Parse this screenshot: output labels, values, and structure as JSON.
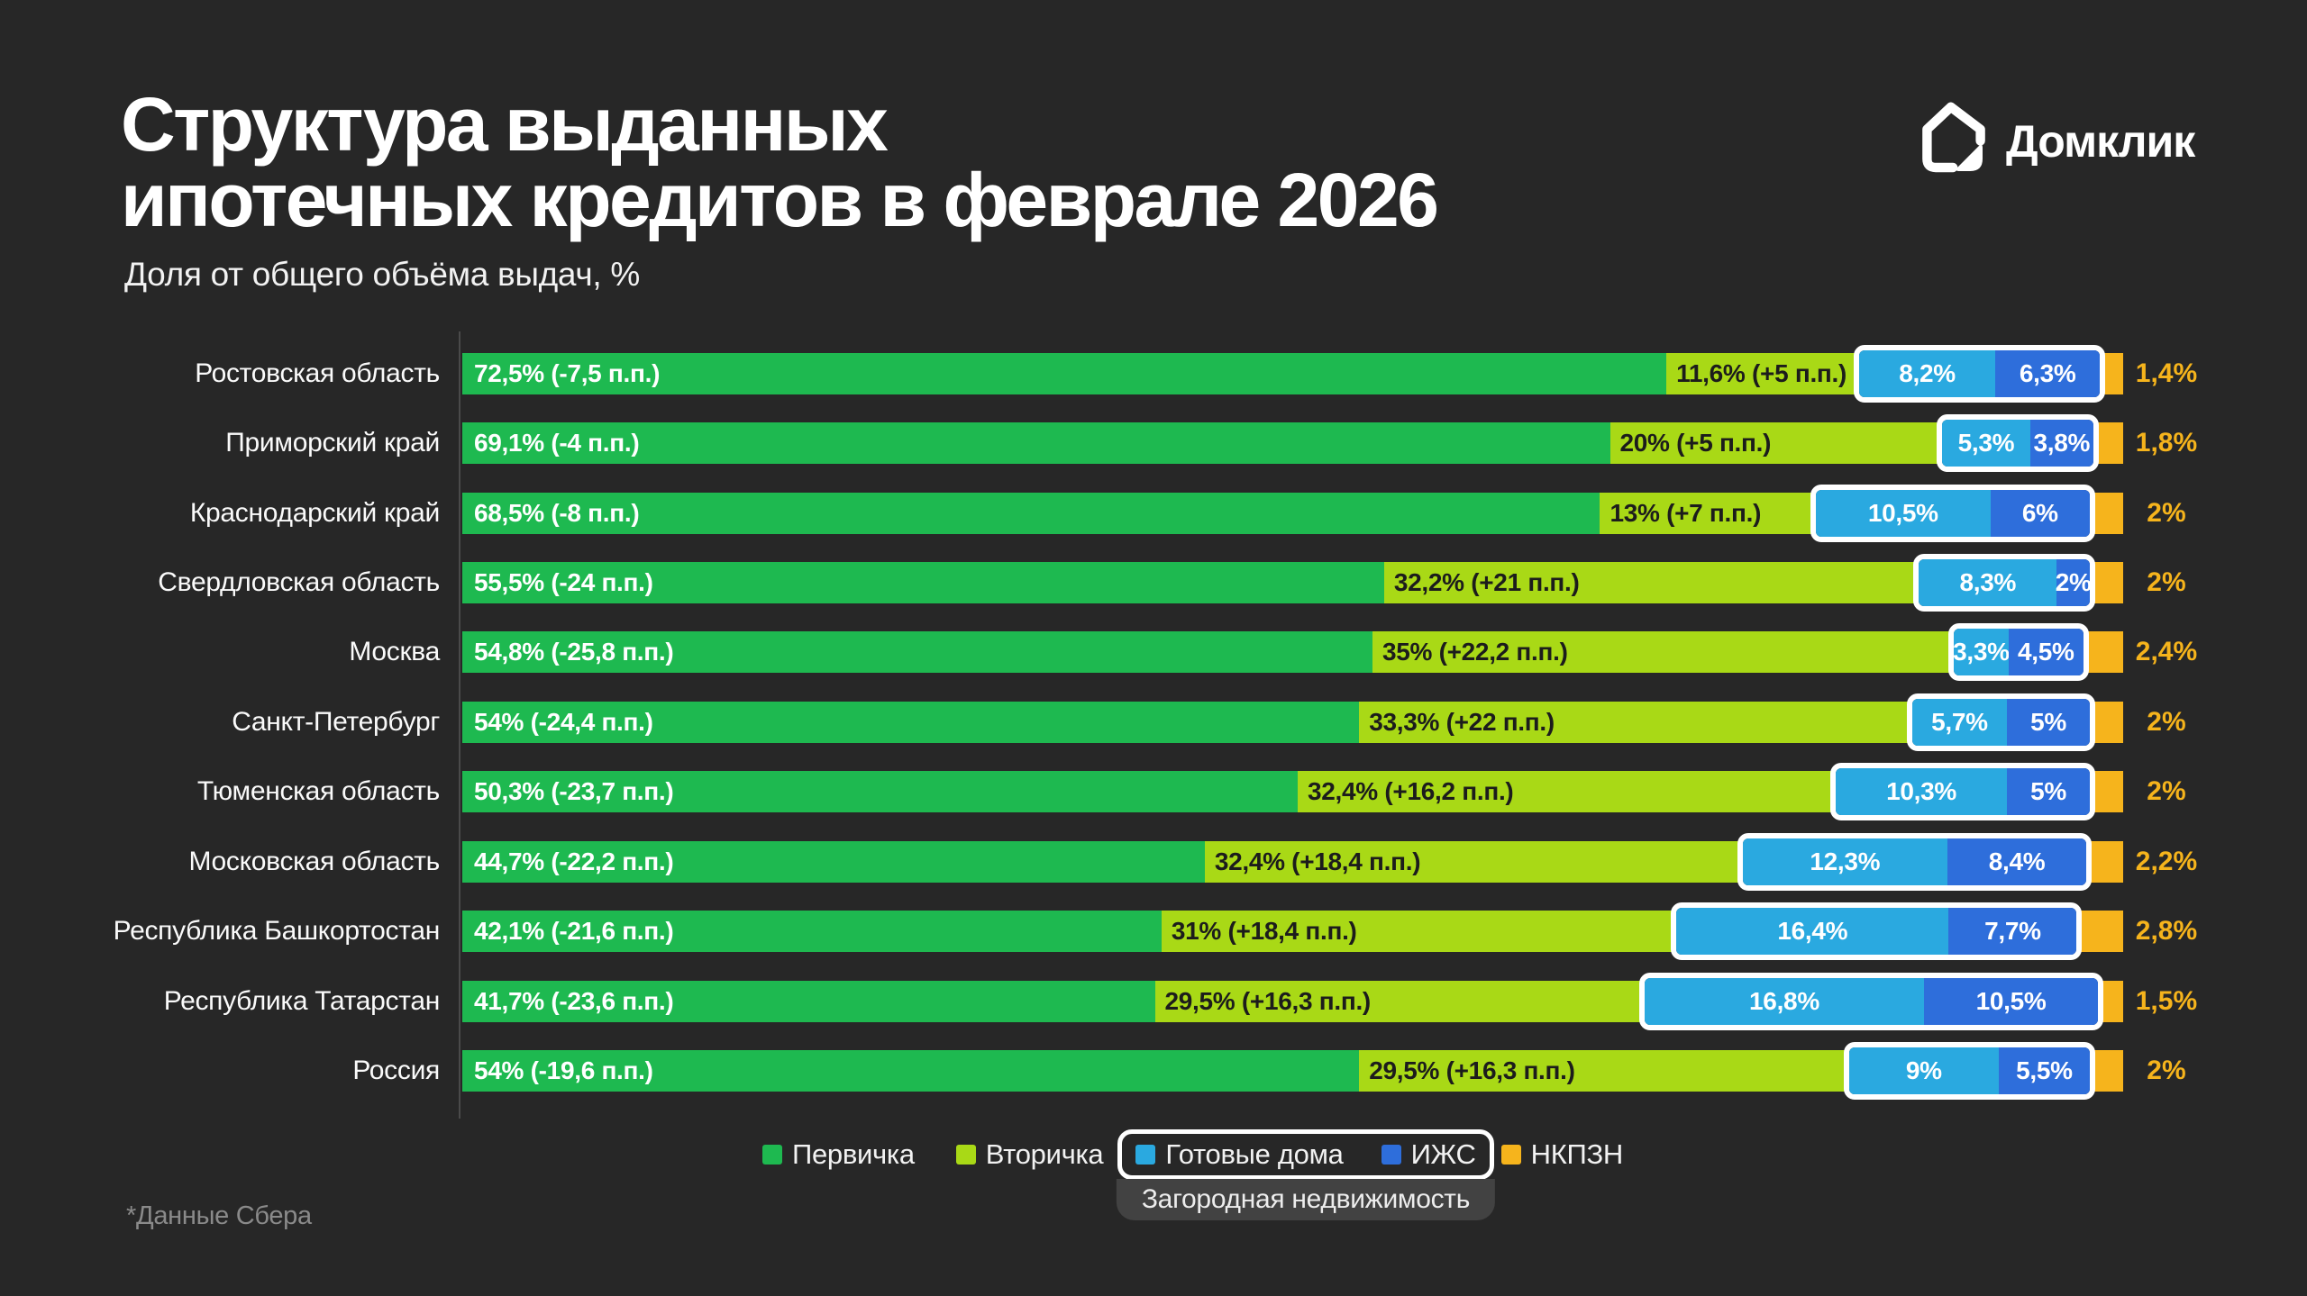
{
  "header": {
    "title_line1": "Структура выданных",
    "title_line2": "ипотечных кредитов в феврале 2026",
    "subtitle": "Доля от общего объёма выдач, %",
    "logo_text": "Домклик"
  },
  "footnote": "*Данные Сбера",
  "colors": {
    "background": "#272727",
    "primary_green": "#1eb950",
    "secondary_lime": "#a9d916",
    "ready_houses_blue": "#2aa9e0",
    "izhs_blue": "#2e6edb",
    "nkpzn_orange": "#f6b41c",
    "bar_label_dark": "#1c1c1c",
    "axis_grey": "#4a4a4a",
    "tab_grey": "#424242",
    "muted_grey": "#8a8a8a"
  },
  "legend": {
    "primary": "Первичка",
    "secondary": "Вторичка",
    "ready_houses": "Готовые дома",
    "izhs": "ИЖС",
    "nkpzn": "НКПЗН",
    "suburban_group": "Загородная недвижимость"
  },
  "chart_data": {
    "type": "bar",
    "orientation": "horizontal",
    "stacked": true,
    "unit": "%",
    "x_range": [
      0,
      100
    ],
    "grid": false,
    "series_names": [
      "Первичка",
      "Вторичка",
      "Готовые дома",
      "ИЖС",
      "НКПЗН"
    ],
    "series": [
      {
        "name": "Первичка",
        "values": [
          72.5,
          69.1,
          68.5,
          55.5,
          54.8,
          54,
          50.3,
          44.7,
          42.1,
          41.7,
          54
        ]
      },
      {
        "name": "Вторичка",
        "values": [
          11.6,
          20,
          13,
          32.2,
          35,
          33.3,
          32.4,
          32.4,
          31,
          29.5,
          29.5
        ]
      },
      {
        "name": "Готовые дома",
        "values": [
          8.2,
          5.3,
          10.5,
          8.3,
          3.3,
          5.7,
          10.3,
          12.3,
          16.4,
          16.8,
          9
        ]
      },
      {
        "name": "ИЖС",
        "values": [
          6.3,
          3.8,
          6,
          2,
          4.5,
          5,
          5,
          8.4,
          7.7,
          10.5,
          5.5
        ]
      },
      {
        "name": "НКПЗН",
        "values": [
          1.4,
          1.8,
          2,
          2,
          2.4,
          2,
          2,
          2.2,
          2.8,
          1.5,
          2
        ]
      }
    ],
    "rows": [
      {
        "region": "Ростовская область",
        "values": {
          "pervichka": 72.5,
          "vtorichka": 11.6,
          "gotovye_doma": 8.2,
          "izhs": 6.3,
          "nkpzn": 1.4
        },
        "labels": {
          "pervichka": "72,5% (-7,5 п.п.)",
          "vtorichka": "11,6% (+5 п.п.)",
          "gotovye_doma": "8,2%",
          "izhs": "6,3%",
          "nkpzn": "1,4%"
        }
      },
      {
        "region": "Приморский край",
        "values": {
          "pervichka": 69.1,
          "vtorichka": 20,
          "gotovye_doma": 5.3,
          "izhs": 3.8,
          "nkpzn": 1.8
        },
        "labels": {
          "pervichka": "69,1% (-4 п.п.)",
          "vtorichka": "20% (+5 п.п.)",
          "gotovye_doma": "5,3%",
          "izhs": "3,8%",
          "nkpzn": "1,8%"
        }
      },
      {
        "region": "Краснодарский край",
        "values": {
          "pervichka": 68.5,
          "vtorichka": 13,
          "gotovye_doma": 10.5,
          "izhs": 6,
          "nkpzn": 2
        },
        "labels": {
          "pervichka": "68,5% (-8 п.п.)",
          "vtorichka": "13% (+7 п.п.)",
          "gotovye_doma": "10,5%",
          "izhs": "6%",
          "nkpzn": "2%"
        }
      },
      {
        "region": "Свердловская область",
        "values": {
          "pervichka": 55.5,
          "vtorichka": 32.2,
          "gotovye_doma": 8.3,
          "izhs": 2,
          "nkpzn": 2
        },
        "labels": {
          "pervichka": "55,5% (-24 п.п.)",
          "vtorichka": "32,2% (+21 п.п.)",
          "gotovye_doma": "8,3%",
          "izhs": "2%",
          "nkpzn": "2%"
        }
      },
      {
        "region": "Москва",
        "values": {
          "pervichka": 54.8,
          "vtorichka": 35,
          "gotovye_doma": 3.3,
          "izhs": 4.5,
          "nkpzn": 2.4
        },
        "labels": {
          "pervichka": "54,8% (-25,8 п.п.)",
          "vtorichka": "35% (+22,2 п.п.)",
          "gotovye_doma": "3,3%",
          "izhs": "4,5%",
          "nkpzn": "2,4%"
        }
      },
      {
        "region": "Санкт-Петербург",
        "values": {
          "pervichka": 54,
          "vtorichka": 33.3,
          "gotovye_doma": 5.7,
          "izhs": 5,
          "nkpzn": 2
        },
        "labels": {
          "pervichka": "54% (-24,4 п.п.)",
          "vtorichka": "33,3% (+22 п.п.)",
          "gotovye_doma": "5,7%",
          "izhs": "5%",
          "nkpzn": "2%"
        }
      },
      {
        "region": "Тюменская область",
        "values": {
          "pervichka": 50.3,
          "vtorichka": 32.4,
          "gotovye_doma": 10.3,
          "izhs": 5,
          "nkpzn": 2
        },
        "labels": {
          "pervichka": "50,3% (-23,7 п.п.)",
          "vtorichka": "32,4% (+16,2 п.п.)",
          "gotovye_doma": "10,3%",
          "izhs": "5%",
          "nkpzn": "2%"
        }
      },
      {
        "region": "Московская область",
        "values": {
          "pervichka": 44.7,
          "vtorichka": 32.4,
          "gotovye_doma": 12.3,
          "izhs": 8.4,
          "nkpzn": 2.2
        },
        "labels": {
          "pervichka": "44,7% (-22,2 п.п.)",
          "vtorichka": "32,4% (+18,4 п.п.)",
          "gotovye_doma": "12,3%",
          "izhs": "8,4%",
          "nkpzn": "2,2%"
        }
      },
      {
        "region": "Республика Башкортостан",
        "values": {
          "pervichka": 42.1,
          "vtorichka": 31,
          "gotovye_doma": 16.4,
          "izhs": 7.7,
          "nkpzn": 2.8
        },
        "labels": {
          "pervichka": "42,1% (-21,6 п.п.)",
          "vtorichka": "31% (+18,4 п.п.)",
          "gotovye_doma": "16,4%",
          "izhs": "7,7%",
          "nkpzn": "2,8%"
        }
      },
      {
        "region": "Республика Татарстан",
        "values": {
          "pervichka": 41.7,
          "vtorichka": 29.5,
          "gotovye_doma": 16.8,
          "izhs": 10.5,
          "nkpzn": 1.5
        },
        "labels": {
          "pervichka": "41,7% (-23,6 п.п.)",
          "vtorichka": "29,5% (+16,3 п.п.)",
          "gotovye_doma": "16,8%",
          "izhs": "10,5%",
          "nkpzn": "1,5%"
        }
      },
      {
        "region": "Россия",
        "values": {
          "pervichka": 54,
          "vtorichka": 29.5,
          "gotovye_doma": 9,
          "izhs": 5.5,
          "nkpzn": 2
        },
        "labels": {
          "pervichka": "54% (-19,6 п.п.)",
          "vtorichka": "29,5% (+16,3 п.п.)",
          "gotovye_doma": "9%",
          "izhs": "5,5%",
          "nkpzn": "2%"
        }
      }
    ]
  }
}
